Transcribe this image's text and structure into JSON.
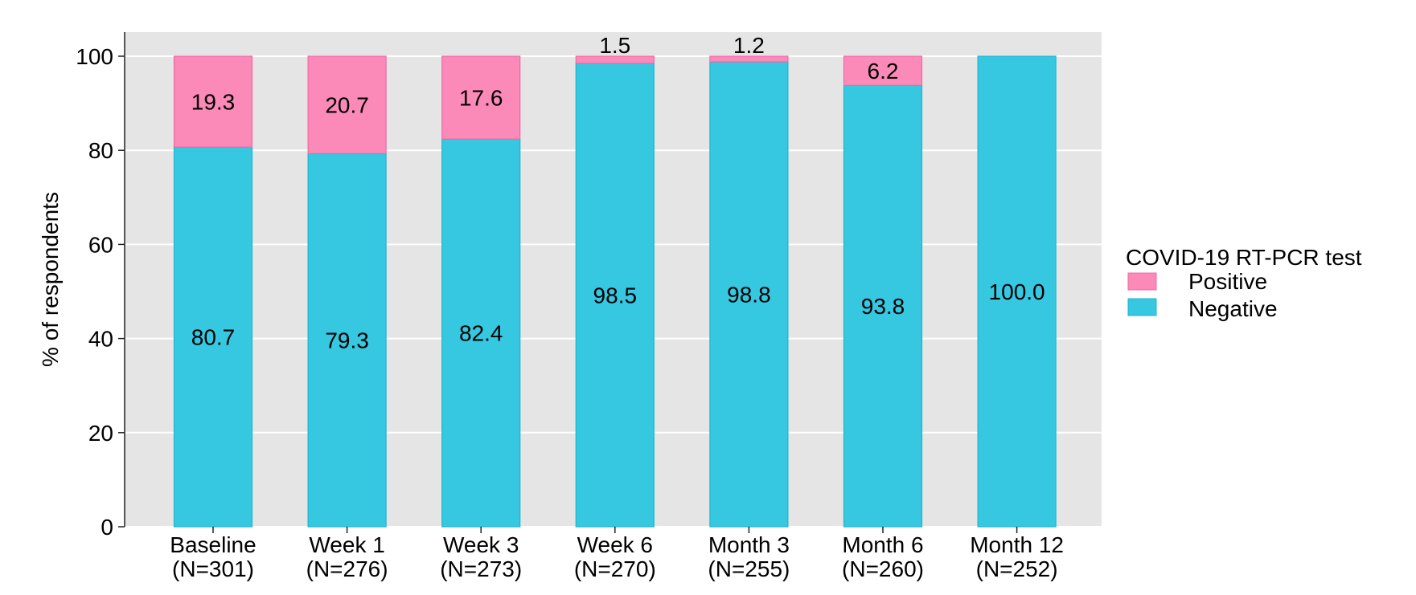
{
  "chart_data": {
    "type": "bar",
    "stacked": true,
    "categories": [
      "Baseline",
      "Week 1",
      "Week 3",
      "Week 6",
      "Month 3",
      "Month 6",
      "Month 12"
    ],
    "category_sublabels": [
      "(N=301)",
      "(N=276)",
      "(N=273)",
      "(N=270)",
      "(N=255)",
      "(N=260)",
      "(N=252)"
    ],
    "series": [
      {
        "name": "Negative",
        "color": "#36c8e0",
        "values": [
          80.7,
          79.3,
          82.4,
          98.5,
          98.8,
          93.8,
          100.0
        ],
        "labels": [
          "80.7",
          "79.3",
          "82.4",
          "98.5",
          "98.8",
          "93.8",
          "100.0"
        ]
      },
      {
        "name": "Positive",
        "color": "#fb8ab8",
        "values": [
          19.3,
          20.7,
          17.6,
          1.5,
          1.2,
          6.2,
          0
        ],
        "labels": [
          "19.3",
          "20.7",
          "17.6",
          "1.5",
          "1.2",
          "6.2",
          ""
        ]
      }
    ],
    "title": "",
    "xlabel": "",
    "ylabel": "% of respondents",
    "ylim": [
      0,
      100
    ],
    "yticks": [
      0,
      20,
      40,
      60,
      80,
      100
    ],
    "grid": true,
    "panel_background": "#e5e5e5",
    "legend": {
      "title": "COVID-19 RT-PCR test",
      "position": "right",
      "entries": [
        {
          "label": "Positive",
          "color": "#fb8ab8"
        },
        {
          "label": "Negative",
          "color": "#36c8e0"
        }
      ]
    }
  }
}
